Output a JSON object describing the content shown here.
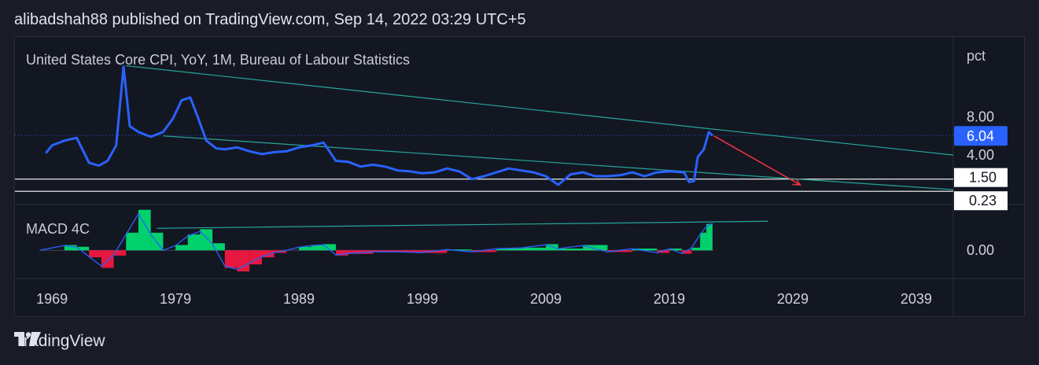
{
  "header": {
    "text": "alibadshah88 published on TradingView.com, Sep 14, 2022 03:29 UTC+5"
  },
  "footer": {
    "brand": "TradingView",
    "logo_icon": "tradingview-logo-icon"
  },
  "colors": {
    "price_line": "#2962ff",
    "trendline": "#26a69a",
    "arrow": "#f23645",
    "macd_pos": "#00e676",
    "macd_neg": "#ff1744",
    "level_line": "#ffffff"
  },
  "chart_data": [
    {
      "type": "line",
      "title": "United States Core CPI, YoY, 1M, Bureau of Labour Statistics",
      "unit": "pct",
      "ylim": [
        0,
        14
      ],
      "xlim": [
        1966,
        2042
      ],
      "yticks": [
        "8.00",
        "4.00"
      ],
      "last_value": "6.04",
      "levels": [
        {
          "value": 1.5,
          "label": "1.50"
        },
        {
          "value": 0.23,
          "label": "0.23"
        }
      ],
      "series": [
        {
          "x": [
            1968.5,
            1969,
            1970,
            1971,
            1972,
            1972.8,
            1973.5,
            1974.2,
            1974.8,
            1975.3,
            1976,
            1977,
            1978,
            1978.8,
            1979.5,
            1980.2,
            1980.8,
            1981.5,
            1982.3,
            1983,
            1984,
            1985,
            1986,
            1987,
            1988,
            1989,
            1990,
            1991,
            1992,
            1993,
            1994,
            1995,
            1996,
            1997,
            1998,
            1999,
            2000,
            2001,
            2002,
            2003,
            2004,
            2005,
            2006,
            2007,
            2008,
            2009,
            2010,
            2011,
            2012,
            2013,
            2014,
            2015,
            2016,
            2017,
            2018,
            2019,
            2020.2,
            2020.6,
            2021,
            2021.3,
            2021.8,
            2022.2,
            2022.5
          ],
          "y": [
            4.2,
            5.0,
            5.5,
            5.8,
            3.2,
            2.9,
            3.4,
            5.0,
            13.2,
            7.0,
            6.4,
            5.9,
            6.4,
            7.8,
            9.7,
            10.0,
            8.0,
            5.5,
            4.7,
            4.6,
            4.8,
            4.4,
            4.1,
            4.3,
            4.4,
            4.8,
            5.0,
            5.3,
            3.4,
            3.3,
            2.8,
            3.0,
            2.8,
            2.4,
            2.3,
            2.1,
            2.2,
            2.6,
            2.3,
            1.5,
            1.8,
            2.2,
            2.6,
            2.4,
            2.2,
            1.8,
            0.9,
            2.0,
            2.2,
            1.8,
            1.8,
            1.9,
            2.2,
            1.8,
            2.2,
            2.3,
            2.2,
            1.2,
            1.3,
            3.8,
            4.6,
            6.4,
            6.04
          ]
        }
      ],
      "trendlines": [
        {
          "from": [
            1975,
            13.3
          ],
          "to": [
            2042,
            4.0
          ]
        },
        {
          "from": [
            1978,
            6.0
          ],
          "to": [
            2042,
            0.4
          ]
        }
      ],
      "arrow": {
        "from": [
          2022.6,
          6.0
        ],
        "to": [
          2029.6,
          0.9
        ]
      }
    },
    {
      "type": "bar",
      "title": "MACD 4C",
      "ylim": [
        -1.6,
        2.6
      ],
      "yticks": [
        "0.00"
      ],
      "x": [
        1968,
        1970,
        1971,
        1972,
        1973,
        1974,
        1975,
        1976,
        1977,
        1978,
        1979,
        1980,
        1981,
        1982,
        1983,
        1984,
        1985,
        1986,
        1987,
        1988,
        1989,
        1990,
        1991,
        1992,
        1993,
        1995,
        1997,
        1999,
        2001,
        2003,
        2005,
        2007,
        2009,
        2010,
        2012,
        2014,
        2016,
        2018,
        2019,
        2020,
        2020.8,
        2021.5,
        2022,
        2022.5
      ],
      "values": [
        0.0,
        0.3,
        0.2,
        -0.4,
        -1.0,
        -0.3,
        1.0,
        2.3,
        1.0,
        0.0,
        0.3,
        0.9,
        1.2,
        0.4,
        -1.0,
        -1.2,
        -0.8,
        -0.4,
        -0.15,
        0.0,
        0.2,
        0.3,
        0.35,
        -0.3,
        -0.2,
        -0.1,
        -0.1,
        -0.15,
        0.05,
        -0.1,
        0.1,
        0.15,
        0.35,
        0.1,
        0.3,
        -0.1,
        0.1,
        -0.15,
        0.1,
        -0.2,
        0.15,
        1.0,
        1.5,
        1.7
      ],
      "trendline": {
        "from": [
          1977.5,
          1.25
        ],
        "to": [
          2027,
          1.65
        ]
      }
    }
  ],
  "x_axis": {
    "labels": [
      "1969",
      "1979",
      "1989",
      "1999",
      "2009",
      "2019",
      "2029",
      "2039"
    ],
    "values": [
      1969,
      1979,
      1989,
      1999,
      2009,
      2019,
      2029,
      2039
    ]
  }
}
